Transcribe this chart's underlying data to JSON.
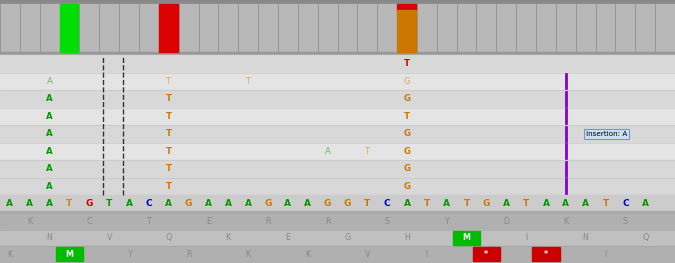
{
  "fig_width": 6.75,
  "fig_height": 2.63,
  "bg_color": "#c0c0c0",
  "track_bg": "#b8b8b8",
  "num_cols": 34,
  "colored_bars": [
    {
      "col": 3,
      "color": "#00dd00"
    },
    {
      "col": 8,
      "color": "#dd0000"
    },
    {
      "col": 20,
      "color_top": "#dd0000",
      "color_bot": "#cc7700",
      "split": 0.12
    }
  ],
  "dashed_line_cols": [
    5,
    6
  ],
  "seq_letters": [
    {
      "ch": "A",
      "col": 0,
      "color": "#009900"
    },
    {
      "ch": "A",
      "col": 1,
      "color": "#009900"
    },
    {
      "ch": "A",
      "col": 2,
      "color": "#009900"
    },
    {
      "ch": "T",
      "col": 3,
      "color": "#cc8800"
    },
    {
      "ch": "G",
      "col": 4,
      "color": "#cc0000"
    },
    {
      "ch": "T",
      "col": 5,
      "color": "#009900"
    },
    {
      "ch": "A",
      "col": 6,
      "color": "#009900"
    },
    {
      "ch": "C",
      "col": 7,
      "color": "#0000cc"
    },
    {
      "ch": "A",
      "col": 8,
      "color": "#009900"
    },
    {
      "ch": "G",
      "col": 9,
      "color": "#cc7700"
    },
    {
      "ch": "A",
      "col": 10,
      "color": "#009900"
    },
    {
      "ch": "A",
      "col": 11,
      "color": "#009900"
    },
    {
      "ch": "A",
      "col": 12,
      "color": "#009900"
    },
    {
      "ch": "G",
      "col": 13,
      "color": "#cc7700"
    },
    {
      "ch": "A",
      "col": 14,
      "color": "#009900"
    },
    {
      "ch": "A",
      "col": 15,
      "color": "#009900"
    },
    {
      "ch": "G",
      "col": 16,
      "color": "#cc7700"
    },
    {
      "ch": "G",
      "col": 17,
      "color": "#cc7700"
    },
    {
      "ch": "T",
      "col": 18,
      "color": "#cc7700"
    },
    {
      "ch": "C",
      "col": 19,
      "color": "#0000cc"
    },
    {
      "ch": "A",
      "col": 20,
      "color": "#009900"
    },
    {
      "ch": "T",
      "col": 21,
      "color": "#cc7700"
    },
    {
      "ch": "A",
      "col": 22,
      "color": "#009900"
    },
    {
      "ch": "T",
      "col": 23,
      "color": "#cc7700"
    },
    {
      "ch": "G",
      "col": 24,
      "color": "#cc7700"
    },
    {
      "ch": "A",
      "col": 25,
      "color": "#009900"
    },
    {
      "ch": "T",
      "col": 26,
      "color": "#cc7700"
    },
    {
      "ch": "A",
      "col": 27,
      "color": "#009900"
    },
    {
      "ch": "A",
      "col": 28,
      "color": "#009900"
    },
    {
      "ch": "A",
      "col": 29,
      "color": "#009900"
    },
    {
      "ch": "T",
      "col": 30,
      "color": "#cc7700"
    },
    {
      "ch": "C",
      "col": 31,
      "color": "#0000cc"
    },
    {
      "ch": "A",
      "col": 32,
      "color": "#009900"
    }
  ],
  "read_rows": [
    {
      "row": 0,
      "bg": "#d8d8d8",
      "letters": [
        {
          "ch": "T",
          "col": 20,
          "color": "#cc0000",
          "bold": true
        }
      ]
    },
    {
      "row": 1,
      "bg": "#e4e4e4",
      "letters": [
        {
          "ch": "A",
          "col": 2,
          "color": "#66bb66"
        },
        {
          "ch": "T",
          "col": 8,
          "color": "#ddaa66"
        },
        {
          "ch": "T",
          "col": 12,
          "color": "#ddaa66"
        },
        {
          "ch": "G",
          "col": 20,
          "color": "#ddaa66"
        },
        {
          "ch": "|",
          "col": 28,
          "color": "#8800cc"
        }
      ]
    },
    {
      "row": 2,
      "bg": "#d8d8d8",
      "letters": [
        {
          "ch": "A",
          "col": 2,
          "color": "#009900",
          "bold": true
        },
        {
          "ch": "T",
          "col": 8,
          "color": "#cc7700",
          "bold": true
        },
        {
          "ch": "G",
          "col": 20,
          "color": "#cc7700",
          "bold": true
        },
        {
          "ch": "|",
          "col": 28,
          "color": "#8800cc"
        }
      ]
    },
    {
      "row": 3,
      "bg": "#e4e4e4",
      "letters": [
        {
          "ch": "A",
          "col": 2,
          "color": "#009900",
          "bold": true
        },
        {
          "ch": "T",
          "col": 8,
          "color": "#cc7700",
          "bold": true
        },
        {
          "ch": "T",
          "col": 20,
          "color": "#cc7700",
          "bold": true
        },
        {
          "ch": "|",
          "col": 28,
          "color": "#8800cc"
        }
      ]
    },
    {
      "row": 4,
      "bg": "#d8d8d8",
      "letters": [
        {
          "ch": "A",
          "col": 2,
          "color": "#009900",
          "bold": true
        },
        {
          "ch": "T",
          "col": 8,
          "color": "#cc7700",
          "bold": true
        },
        {
          "ch": "G",
          "col": 20,
          "color": "#cc7700",
          "bold": true
        },
        {
          "ch": "|",
          "col": 28,
          "color": "#8800cc"
        }
      ],
      "tooltip": {
        "text": "Insertion: A",
        "col": 29
      }
    },
    {
      "row": 5,
      "bg": "#e4e4e4",
      "letters": [
        {
          "ch": "A",
          "col": 2,
          "color": "#009900",
          "bold": true
        },
        {
          "ch": "T",
          "col": 8,
          "color": "#cc7700",
          "bold": true
        },
        {
          "ch": "A",
          "col": 16,
          "color": "#66bb66"
        },
        {
          "ch": "T",
          "col": 18,
          "color": "#ddaa66"
        },
        {
          "ch": "G",
          "col": 20,
          "color": "#cc7700",
          "bold": true
        },
        {
          "ch": "|",
          "col": 28,
          "color": "#8800cc"
        }
      ]
    },
    {
      "row": 6,
      "bg": "#d8d8d8",
      "letters": [
        {
          "ch": "A",
          "col": 2,
          "color": "#009900",
          "bold": true
        },
        {
          "ch": "T",
          "col": 8,
          "color": "#cc7700",
          "bold": true
        },
        {
          "ch": "G",
          "col": 20,
          "color": "#cc7700",
          "bold": true
        },
        {
          "ch": "|",
          "col": 28,
          "color": "#8800cc"
        }
      ]
    },
    {
      "row": 7,
      "bg": "#d8d8d8",
      "letters": [
        {
          "ch": "A",
          "col": 2,
          "color": "#009900",
          "bold": true
        },
        {
          "ch": "T",
          "col": 8,
          "color": "#cc7700",
          "bold": true
        },
        {
          "ch": "G",
          "col": 20,
          "color": "#cc7700",
          "bold": true
        },
        {
          "ch": "|",
          "col": 28,
          "color": "#8800cc"
        }
      ]
    }
  ],
  "amino_rows": [
    {
      "row": 0,
      "bg": "#b0b0b0",
      "letters": [
        {
          "ch": "K",
          "col": 1,
          "color": "#888888"
        },
        {
          "ch": "C",
          "col": 4,
          "color": "#888888"
        },
        {
          "ch": "T",
          "col": 7,
          "color": "#888888"
        },
        {
          "ch": "E",
          "col": 10,
          "color": "#888888"
        },
        {
          "ch": "R",
          "col": 13,
          "color": "#888888"
        },
        {
          "ch": "R",
          "col": 16,
          "color": "#888888"
        },
        {
          "ch": "S",
          "col": 19,
          "color": "#888888"
        },
        {
          "ch": "Y",
          "col": 22,
          "color": "#888888"
        },
        {
          "ch": "D",
          "col": 25,
          "color": "#888888"
        },
        {
          "ch": "K",
          "col": 28,
          "color": "#888888"
        },
        {
          "ch": "S",
          "col": 31,
          "color": "#888888"
        }
      ]
    },
    {
      "row": 1,
      "bg": "#c0c0c0",
      "letters": [
        {
          "ch": "N",
          "col": 2,
          "color": "#888888"
        },
        {
          "ch": "V",
          "col": 5,
          "color": "#888888"
        },
        {
          "ch": "Q",
          "col": 8,
          "color": "#888888"
        },
        {
          "ch": "K",
          "col": 11,
          "color": "#888888"
        },
        {
          "ch": "E",
          "col": 14,
          "color": "#888888"
        },
        {
          "ch": "G",
          "col": 17,
          "color": "#888888"
        },
        {
          "ch": "H",
          "col": 20,
          "color": "#888888"
        },
        {
          "ch": "M",
          "col": 23,
          "color": "#ffffff",
          "bg": "#00bb00"
        },
        {
          "ch": "I",
          "col": 26,
          "color": "#888888"
        },
        {
          "ch": "N",
          "col": 29,
          "color": "#888888"
        },
        {
          "ch": "Q",
          "col": 32,
          "color": "#888888"
        }
      ]
    },
    {
      "row": 2,
      "bg": "#b0b0b0",
      "letters": [
        {
          "ch": "K",
          "col": 0,
          "color": "#888888"
        },
        {
          "ch": "M",
          "col": 3,
          "color": "#ffffff",
          "bg": "#00bb00"
        },
        {
          "ch": "Y",
          "col": 6,
          "color": "#888888"
        },
        {
          "ch": "R",
          "col": 9,
          "color": "#888888"
        },
        {
          "ch": "K",
          "col": 12,
          "color": "#888888"
        },
        {
          "ch": "K",
          "col": 15,
          "color": "#888888"
        },
        {
          "ch": "V",
          "col": 18,
          "color": "#888888"
        },
        {
          "ch": "I",
          "col": 21,
          "color": "#888888"
        },
        {
          "ch": "*",
          "col": 24,
          "color": "#ffffff",
          "bg": "#cc0000"
        },
        {
          "ch": "*",
          "col": 27,
          "color": "#ffffff",
          "bg": "#cc0000"
        },
        {
          "ch": "I",
          "col": 30,
          "color": "#888888"
        }
      ]
    }
  ]
}
